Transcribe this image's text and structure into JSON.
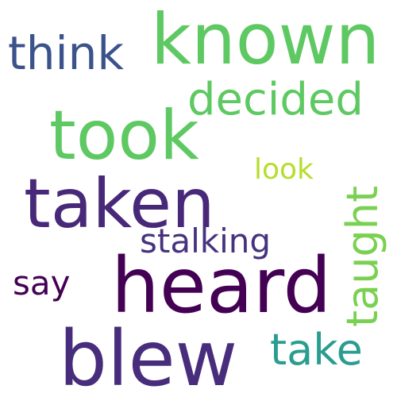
{
  "words": [
    {
      "text": "known",
      "color": "#5EC962",
      "orientation": "horizontal"
    },
    {
      "text": "think",
      "color": "#3B528B",
      "orientation": "horizontal"
    },
    {
      "text": "decided",
      "color": "#5EC962",
      "orientation": "horizontal"
    },
    {
      "text": "took",
      "color": "#5EC962",
      "orientation": "horizontal"
    },
    {
      "text": "look",
      "color": "#B5DE2B",
      "orientation": "horizontal"
    },
    {
      "text": "taught",
      "color": "#7AD151",
      "orientation": "vertical"
    },
    {
      "text": "taken",
      "color": "#482878",
      "orientation": "horizontal"
    },
    {
      "text": "stalking",
      "color": "#46327E",
      "orientation": "horizontal"
    },
    {
      "text": "say",
      "color": "#440154",
      "orientation": "horizontal"
    },
    {
      "text": "heard",
      "color": "#440154",
      "orientation": "horizontal"
    },
    {
      "text": "blew",
      "color": "#472D7B",
      "orientation": "horizontal"
    },
    {
      "text": "take",
      "color": "#2A9D8F",
      "orientation": "horizontal"
    }
  ]
}
